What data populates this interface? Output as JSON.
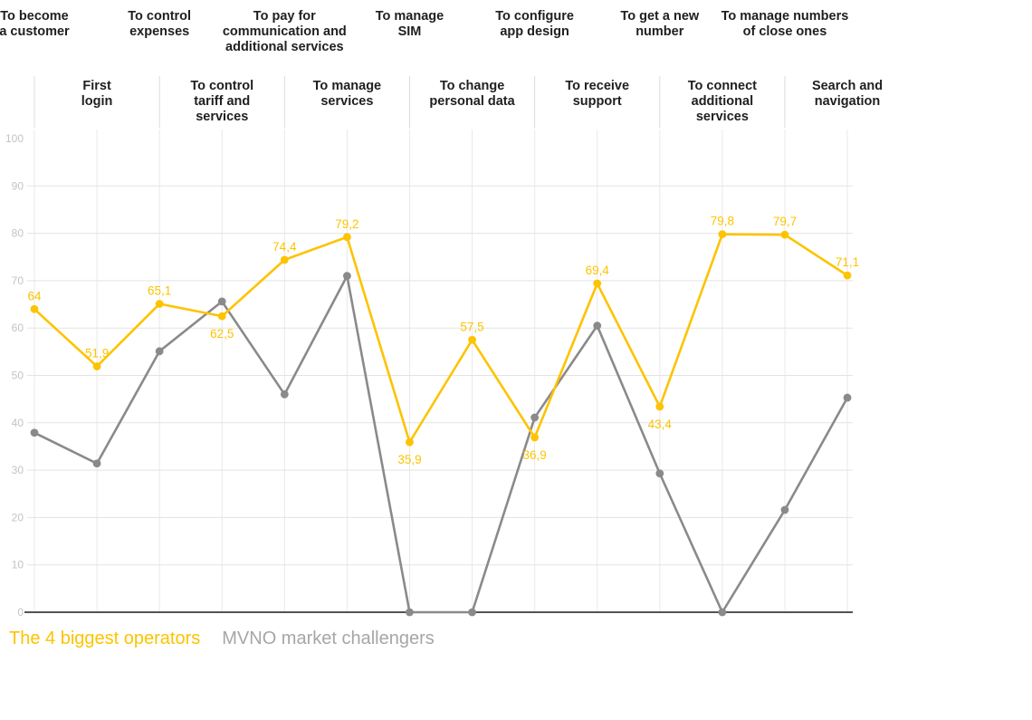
{
  "chart_data": {
    "type": "line",
    "title": "",
    "xlabel": "",
    "ylabel": "",
    "ylim": [
      0,
      100
    ],
    "yticks": [
      0,
      10,
      20,
      30,
      40,
      50,
      60,
      70,
      80,
      90,
      100
    ],
    "grid": true,
    "legend_position": "bottom-left",
    "categories": [
      "To become\na customer",
      "First\nlogin",
      "To control\nexpenses",
      "To control\ntariff and\nservices",
      "To pay for\ncommunication and\nadditional services",
      "To manage\nservices",
      "To manage\nSIM",
      "To change\npersonal data",
      "To configure\napp design",
      "To receive\nsupport",
      "To get a new\nnumber",
      "To connect\nadditional\nservices",
      "To manage numbers\nof close ones",
      "Search and\nnavigation"
    ],
    "category_label_rows": [
      1,
      2,
      1,
      2,
      1,
      2,
      1,
      2,
      1,
      2,
      1,
      2,
      1,
      2
    ],
    "series": [
      {
        "name": "The 4 biggest operators",
        "color": "#FDC300",
        "values": [
          64,
          51.9,
          65.1,
          62.5,
          74.4,
          79.2,
          35.9,
          57.5,
          36.9,
          69.4,
          43.4,
          79.8,
          79.7,
          71.1
        ],
        "point_labels": [
          "64",
          "51,9",
          "65,1",
          "62,5",
          "74,4",
          "79,2",
          "35,9",
          "57,5",
          "36,9",
          "69,4",
          "43,4",
          "79,8",
          "79,7",
          "71,1"
        ],
        "labels_visible": true,
        "label_below_indices": [
          3,
          6,
          8,
          10
        ]
      },
      {
        "name": "MVNO market challengers",
        "color": "#8A8A8A",
        "values": [
          37.9,
          31.4,
          55.1,
          65.6,
          46,
          71,
          0,
          0,
          41.1,
          60.5,
          29.3,
          0,
          21.6,
          45.3
        ],
        "point_labels": [],
        "labels_visible": false,
        "label_below_indices": []
      }
    ]
  },
  "colors": {
    "grid_horizontal": "#e3e3e3",
    "grid_vertical": "#e9e9e9",
    "header_separator": "#dcdcdc",
    "axis_line": "#1a1a1a",
    "tick_label": "#c3c3c3",
    "header_text": "#1f1f1f"
  }
}
